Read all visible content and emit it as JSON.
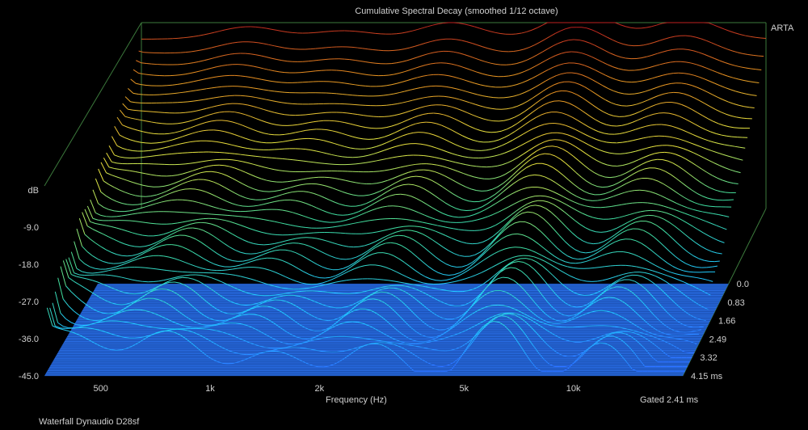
{
  "chart_data": {
    "type": "waterfall",
    "title": "Cumulative Spectral Decay (smoothed 1/12 octave)",
    "xlabel": "Frequency (Hz)",
    "zlabel": "dB",
    "x_scale": "log",
    "x_range_hz": [
      350,
      20000
    ],
    "x_ticks": [
      {
        "value": 500,
        "label": "500"
      },
      {
        "value": 1000,
        "label": "1k"
      },
      {
        "value": 2000,
        "label": "2k"
      },
      {
        "value": 5000,
        "label": "5k"
      },
      {
        "value": 10000,
        "label": "10k"
      }
    ],
    "z_range_db": [
      -45,
      0
    ],
    "z_ticks": [
      "dB",
      "-9.0",
      "-18.0",
      "-27.0",
      "-36.0",
      "-45.0"
    ],
    "time_ticks_ms": [
      "0.0",
      "0.83",
      "1.66",
      "2.49",
      "3.32",
      "4.15 ms"
    ],
    "time_range_ms": [
      0,
      4.15
    ],
    "gate_note": "Gated 2.41 ms",
    "colormap": [
      "#2a6fff",
      "#20c8ff",
      "#40e0a0",
      "#e8e840",
      "#e89020",
      "#c02020"
    ],
    "grid": false
  },
  "brand": "ARTA",
  "footer": "Waterfall Dynaudio D28sf"
}
